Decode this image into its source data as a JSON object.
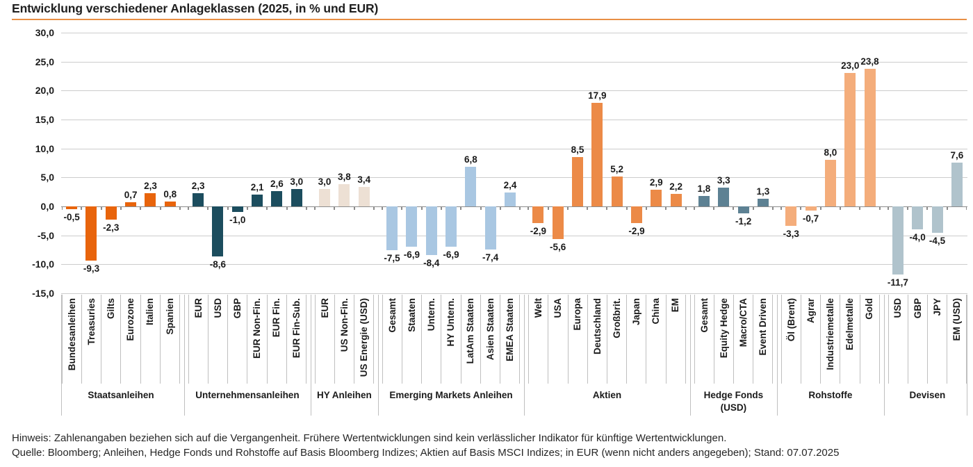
{
  "header": {
    "title": "Entwicklung verschiedener Anlageklassen (2025, in % und EUR)",
    "accent_color": "#E88F44"
  },
  "y_axis": {
    "min": -15,
    "max": 30,
    "step": 5,
    "ticks": [
      {
        "value": 30,
        "label": "30,0"
      },
      {
        "value": 25,
        "label": "25,0"
      },
      {
        "value": 20,
        "label": "20,0"
      },
      {
        "value": 15,
        "label": "15,0"
      },
      {
        "value": 10,
        "label": "10,0"
      },
      {
        "value": 5,
        "label": "5,0"
      },
      {
        "value": 0,
        "label": "0,0"
      },
      {
        "value": -5,
        "label": "-5,0"
      },
      {
        "value": -10,
        "label": "-10,0"
      },
      {
        "value": -15,
        "label": "-15,0"
      }
    ]
  },
  "chart_data": {
    "type": "bar",
    "title": "Entwicklung verschiedener Anlageklassen (2025, in % und EUR)",
    "xlabel": "",
    "ylabel": "%",
    "ylim": [
      -15,
      30
    ],
    "grid": true,
    "legend": "none",
    "value_labels": "outside-end, German comma decimals",
    "groups": [
      {
        "name": "Staatsanleihen",
        "name_lines": [
          "Staatsanleihen"
        ],
        "color": "#E8640C",
        "bars": [
          {
            "label": "Bundesanleihen",
            "value": -0.5,
            "display": "-0,5"
          },
          {
            "label": "Treasuries",
            "value": -9.3,
            "display": "-9,3"
          },
          {
            "label": "Gilts",
            "value": -2.3,
            "display": "-2,3"
          },
          {
            "label": "Eurozone",
            "value": 0.7,
            "display": "0,7"
          },
          {
            "label": "Italien",
            "value": 2.3,
            "display": "2,3"
          },
          {
            "label": "Spanien",
            "value": 0.8,
            "display": "0,8"
          }
        ]
      },
      {
        "name": "Unternehmensanleihen",
        "name_lines": [
          "Unternehmensanleihen"
        ],
        "color": "#1C4D5E",
        "bars": [
          {
            "label": "EUR",
            "value": 2.3,
            "display": "2,3"
          },
          {
            "label": "USD",
            "value": -8.6,
            "display": "-8,6"
          },
          {
            "label": "GBP",
            "value": -1.0,
            "display": "-1,0"
          },
          {
            "label": "EUR Non-Fin.",
            "value": 2.1,
            "display": "2,1"
          },
          {
            "label": "EUR Fin.",
            "value": 2.6,
            "display": "2,6"
          },
          {
            "label": "EUR Fin-Sub.",
            "value": 3.0,
            "display": "3,0"
          }
        ]
      },
      {
        "name": "HY Anleihen",
        "name_lines": [
          "HY Anleihen"
        ],
        "color": "#EDE0D4",
        "bars": [
          {
            "label": "EUR",
            "value": 3.0,
            "display": "3,0"
          },
          {
            "label": "US Non-Fin.",
            "value": 3.8,
            "display": "3,8"
          },
          {
            "label": "US Energie (USD)",
            "value": 3.4,
            "display": "3,4"
          }
        ]
      },
      {
        "name": "Emerging Markets Anleihen",
        "name_lines": [
          "Emerging Markets Anleihen"
        ],
        "color": "#A9C7E2",
        "bars": [
          {
            "label": "Gesamt",
            "value": -7.5,
            "display": "-7,5"
          },
          {
            "label": "Staaten",
            "value": -6.9,
            "display": "-6,9"
          },
          {
            "label": "Untern.",
            "value": -8.4,
            "display": "-8,4"
          },
          {
            "label": "HY Untern.",
            "value": -6.9,
            "display": "-6,9"
          },
          {
            "label": "LatAm Staaten",
            "value": 6.8,
            "display": "6,8"
          },
          {
            "label": "Asien Staaten",
            "value": -7.4,
            "display": "-7,4"
          },
          {
            "label": "EMEA Staaten",
            "value": 2.4,
            "display": "2,4"
          }
        ]
      },
      {
        "name": "Aktien",
        "name_lines": [
          "Aktien"
        ],
        "color": "#EC8A47",
        "bars": [
          {
            "label": "Welt",
            "value": -2.9,
            "display": "-2,9"
          },
          {
            "label": "USA",
            "value": -5.6,
            "display": "-5,6"
          },
          {
            "label": "Europa",
            "value": 8.5,
            "display": "8,5"
          },
          {
            "label": "Deutschland",
            "value": 17.9,
            "display": "17,9"
          },
          {
            "label": "Großbrit.",
            "value": 5.2,
            "display": "5,2"
          },
          {
            "label": "Japan",
            "value": -2.9,
            "display": "-2,9"
          },
          {
            "label": "China",
            "value": 2.9,
            "display": "2,9"
          },
          {
            "label": "EM",
            "value": 2.2,
            "display": "2,2"
          }
        ]
      },
      {
        "name": "Hedge Fonds (USD)",
        "name_lines": [
          "Hedge Fonds",
          "(USD)"
        ],
        "color": "#5D8193",
        "bars": [
          {
            "label": "Gesamt",
            "value": 1.8,
            "display": "1,8"
          },
          {
            "label": "Equity Hedge",
            "value": 3.3,
            "display": "3,3"
          },
          {
            "label": "Macro/CTA",
            "value": -1.2,
            "display": "-1,2"
          },
          {
            "label": "Event Driven",
            "value": 1.3,
            "display": "1,3"
          }
        ]
      },
      {
        "name": "Rohstoffe",
        "name_lines": [
          "Rohstoffe"
        ],
        "color": "#F4AD7B",
        "bars": [
          {
            "label": "Öl (Brent)",
            "value": -3.3,
            "display": "-3,3"
          },
          {
            "label": "Agrar",
            "value": -0.7,
            "display": "-0,7"
          },
          {
            "label": "Industriemetalle",
            "value": 8.0,
            "display": "8,0"
          },
          {
            "label": "Edelmetalle",
            "value": 23.0,
            "display": "23,0"
          },
          {
            "label": "Gold",
            "value": 23.8,
            "display": "23,8"
          }
        ]
      },
      {
        "name": "Devisen",
        "name_lines": [
          "Devisen"
        ],
        "color": "#B0C3CC",
        "bars": [
          {
            "label": "USD",
            "value": -11.7,
            "display": "-11,7"
          },
          {
            "label": "GBP",
            "value": -4.0,
            "display": "-4,0"
          },
          {
            "label": "JPY",
            "value": -4.5,
            "display": "-4,5"
          },
          {
            "label": "EM (USD)",
            "value": 7.6,
            "display": "7,6"
          }
        ]
      }
    ]
  },
  "footer": {
    "note": "Hinweis: Zahlenangaben beziehen sich auf die Vergangenheit. Frühere Wertentwicklungen sind kein verlässlicher Indikator für künftige Wertentwicklungen.",
    "source": "Quelle: Bloomberg; Anleihen, Hedge Fonds und Rohstoffe auf Basis Bloomberg Indizes; Aktien auf Basis MSCI Indizes; in EUR (wenn nicht anders angegeben); Stand: 07.07.2025"
  }
}
